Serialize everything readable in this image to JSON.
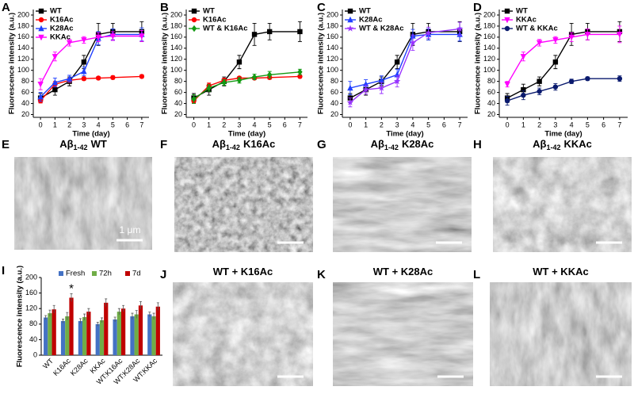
{
  "chart_data": [
    {
      "type": "line",
      "panel": "A",
      "xlabel": "Time (day)",
      "ylabel": "Fluorescence intensity (a.u.)",
      "x": [
        0,
        1,
        2,
        3,
        4,
        5,
        7
      ],
      "xlim": [
        -0.5,
        7.5
      ],
      "xticks": [
        0,
        1,
        2,
        3,
        4,
        5,
        6,
        7
      ],
      "ylim": [
        15,
        210
      ],
      "yticks": [
        20,
        40,
        60,
        80,
        100,
        120,
        140,
        160,
        180,
        200
      ],
      "series": [
        {
          "name": "WT",
          "color": "#000000",
          "marker": "square",
          "values": [
            50,
            65,
            80,
            115,
            165,
            170,
            170
          ],
          "errors": [
            8,
            10,
            8,
            12,
            20,
            15,
            18
          ]
        },
        {
          "name": "K16Ac",
          "color": "#ff0000",
          "marker": "circle",
          "values": [
            45,
            75,
            82,
            85,
            86,
            87,
            89
          ],
          "errors": [
            4,
            5,
            4,
            3,
            3,
            3,
            3
          ]
        },
        {
          "name": "K28Ac",
          "color": "#1f3fff",
          "marker": "triangle-up",
          "values": [
            52,
            78,
            85,
            98,
            158,
            165,
            165
          ],
          "errors": [
            8,
            8,
            6,
            8,
            12,
            10,
            12
          ]
        },
        {
          "name": "KKAc",
          "color": "#ff00ff",
          "marker": "triangle-down",
          "values": [
            75,
            125,
            150,
            155,
            160,
            162,
            162
          ],
          "errors": [
            10,
            8,
            6,
            6,
            8,
            8,
            10
          ]
        }
      ]
    },
    {
      "type": "line",
      "panel": "B",
      "xlabel": "Time (day)",
      "ylabel": "Fluorescence intensity (a.u.)",
      "x": [
        0,
        1,
        2,
        3,
        4,
        5,
        7
      ],
      "xlim": [
        -0.5,
        7.5
      ],
      "xticks": [
        0,
        1,
        2,
        3,
        4,
        5,
        6,
        7
      ],
      "ylim": [
        15,
        210
      ],
      "yticks": [
        20,
        40,
        60,
        80,
        100,
        120,
        140,
        160,
        180,
        200
      ],
      "series": [
        {
          "name": "WT",
          "color": "#000000",
          "marker": "square",
          "values": [
            50,
            65,
            80,
            115,
            165,
            170,
            170
          ],
          "errors": [
            8,
            10,
            8,
            12,
            20,
            15,
            18
          ]
        },
        {
          "name": "K16Ac",
          "color": "#ff0000",
          "marker": "circle",
          "values": [
            45,
            72,
            82,
            86,
            86,
            87,
            89
          ],
          "errors": [
            4,
            5,
            4,
            3,
            3,
            3,
            3
          ]
        },
        {
          "name": "WT & K16Ac",
          "color": "#139a13",
          "marker": "diamond",
          "values": [
            48,
            68,
            78,
            82,
            88,
            92,
            97
          ],
          "errors": [
            8,
            6,
            5,
            5,
            5,
            6,
            5
          ]
        }
      ]
    },
    {
      "type": "line",
      "panel": "C",
      "xlabel": "Time (day)",
      "ylabel": "Fluorescence intensity (a.u.)",
      "x": [
        0,
        1,
        2,
        3,
        4,
        5,
        7
      ],
      "xlim": [
        -0.5,
        7.5
      ],
      "xticks": [
        0,
        1,
        2,
        3,
        4,
        5,
        6,
        7
      ],
      "ylim": [
        15,
        210
      ],
      "yticks": [
        20,
        40,
        60,
        80,
        100,
        120,
        140,
        160,
        180,
        200
      ],
      "series": [
        {
          "name": "WT",
          "color": "#000000",
          "marker": "square",
          "values": [
            50,
            65,
            80,
            115,
            165,
            170,
            170
          ],
          "errors": [
            8,
            10,
            8,
            12,
            20,
            15,
            18
          ]
        },
        {
          "name": "K28Ac",
          "color": "#1f3fff",
          "marker": "triangle-up",
          "values": [
            68,
            75,
            82,
            92,
            162,
            165,
            165
          ],
          "errors": [
            12,
            8,
            8,
            10,
            12,
            10,
            12
          ]
        },
        {
          "name": "WT & K28Ac",
          "color": "#9933ff",
          "marker": "star",
          "values": [
            42,
            65,
            68,
            80,
            150,
            168,
            175
          ],
          "errors": [
            8,
            8,
            10,
            10,
            14,
            10,
            12
          ]
        }
      ]
    },
    {
      "type": "line",
      "panel": "D",
      "xlabel": "Time (day)",
      "ylabel": "Fluorescence intensity (a.u.)",
      "x": [
        0,
        1,
        2,
        3,
        4,
        5,
        7
      ],
      "xlim": [
        -0.5,
        7.5
      ],
      "xticks": [
        0,
        1,
        2,
        3,
        4,
        5,
        6,
        7
      ],
      "ylim": [
        15,
        210
      ],
      "yticks": [
        20,
        40,
        60,
        80,
        100,
        120,
        140,
        160,
        180,
        200
      ],
      "series": [
        {
          "name": "WT",
          "color": "#000000",
          "marker": "square",
          "values": [
            50,
            65,
            80,
            115,
            165,
            170,
            170
          ],
          "errors": [
            8,
            10,
            8,
            12,
            20,
            15,
            18
          ]
        },
        {
          "name": "KKAc",
          "color": "#ff00ff",
          "marker": "triangle-down",
          "values": [
            75,
            125,
            150,
            155,
            160,
            165,
            165
          ],
          "errors": [
            5,
            8,
            6,
            6,
            8,
            10,
            15
          ]
        },
        {
          "name": "WT & KKAc",
          "color": "#0a1a6e",
          "marker": "circle",
          "values": [
            45,
            55,
            62,
            70,
            80,
            85,
            85
          ],
          "errors": [
            8,
            8,
            6,
            6,
            4,
            3,
            5
          ]
        }
      ]
    },
    {
      "type": "bar",
      "panel": "I",
      "ylabel": "Fluorescence intensity (a.u.)",
      "categories": [
        "WT",
        "K16Ac",
        "K28Ac",
        "KKAc",
        "WT:K16Ac",
        "WT:K28Ac",
        "WT:KKAc"
      ],
      "ylim": [
        0,
        200
      ],
      "yticks": [
        0,
        40,
        80,
        120,
        160,
        200
      ],
      "annotation": "*",
      "series": [
        {
          "name": "Fresh",
          "color": "#4472c4",
          "values": [
            97,
            88,
            88,
            80,
            92,
            100,
            105
          ],
          "errors": [
            5,
            5,
            6,
            5,
            6,
            8,
            6
          ]
        },
        {
          "name": "72h",
          "color": "#70ad47",
          "values": [
            108,
            100,
            98,
            90,
            112,
            105,
            100
          ],
          "errors": [
            8,
            10,
            8,
            6,
            8,
            10,
            8
          ]
        },
        {
          "name": "7d",
          "color": "#c00000",
          "values": [
            118,
            148,
            112,
            135,
            120,
            128,
            125
          ],
          "errors": [
            10,
            10,
            8,
            10,
            8,
            10,
            10
          ]
        }
      ]
    }
  ],
  "images": [
    {
      "panel": "E",
      "label": "Aβ",
      "subscript": "1-42",
      "name": "WT",
      "scale": "1 μm"
    },
    {
      "panel": "F",
      "label": "Aβ",
      "subscript": "1-42",
      "name": "K16Ac"
    },
    {
      "panel": "G",
      "label": "Aβ",
      "subscript": "1-42",
      "name": "K28Ac"
    },
    {
      "panel": "H",
      "label": "Aβ",
      "subscript": "1-42",
      "name": "KKAc"
    },
    {
      "panel": "J",
      "name": "WT + K16Ac"
    },
    {
      "panel": "K",
      "name": "WT + K28Ac"
    },
    {
      "panel": "L",
      "name": "WT + KKAc"
    }
  ]
}
